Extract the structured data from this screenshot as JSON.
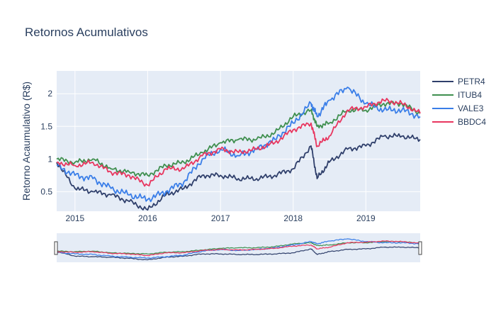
{
  "chart_data": {
    "type": "line",
    "title": "Retornos Acumulativos",
    "xlabel": "",
    "ylabel": "Retorno Acaumulativo (R$)",
    "x": [
      "2014-10",
      "2015-01",
      "2015-04",
      "2015-07",
      "2015-10",
      "2016-01",
      "2016-04",
      "2016-07",
      "2016-10",
      "2017-01",
      "2017-04",
      "2017-07",
      "2017-10",
      "2018-01",
      "2018-04",
      "2018-05",
      "2018-07",
      "2018-10",
      "2019-01",
      "2019-04",
      "2019-07",
      "2019-10"
    ],
    "x_ticks": [
      "2015",
      "2016",
      "2017",
      "2018",
      "2019"
    ],
    "y_ticks": [
      "0.5",
      "1",
      "1.5",
      "2"
    ],
    "ylim": [
      0.2,
      2.35
    ],
    "grid": true,
    "legend_position": "right",
    "range_slider": true,
    "series": [
      {
        "name": "PETR4",
        "color": "#2f3f6b",
        "values": [
          0.95,
          0.55,
          0.5,
          0.45,
          0.35,
          0.22,
          0.45,
          0.55,
          0.75,
          0.75,
          0.7,
          0.7,
          0.75,
          0.85,
          1.2,
          0.7,
          0.95,
          1.15,
          1.2,
          1.35,
          1.35,
          1.3
        ]
      },
      {
        "name": "ITUB4",
        "color": "#3f8f4f",
        "values": [
          1.0,
          0.95,
          1.0,
          0.85,
          0.8,
          0.75,
          0.9,
          0.95,
          1.1,
          1.25,
          1.3,
          1.3,
          1.4,
          1.65,
          1.75,
          1.5,
          1.55,
          1.75,
          1.75,
          1.85,
          1.85,
          1.7
        ]
      },
      {
        "name": "VALE3",
        "color": "#3a7ee8",
        "values": [
          0.9,
          0.75,
          0.7,
          0.55,
          0.45,
          0.38,
          0.5,
          0.65,
          1.0,
          1.15,
          1.05,
          1.15,
          1.3,
          1.55,
          1.85,
          1.65,
          1.9,
          2.1,
          1.85,
          1.75,
          1.75,
          1.65
        ]
      },
      {
        "name": "BBDC4",
        "color": "#e8365f",
        "values": [
          0.95,
          0.9,
          0.95,
          0.8,
          0.75,
          0.6,
          0.85,
          0.85,
          1.05,
          1.15,
          1.1,
          1.15,
          1.25,
          1.45,
          1.55,
          1.2,
          1.35,
          1.75,
          1.8,
          1.9,
          1.85,
          1.7
        ]
      }
    ]
  }
}
